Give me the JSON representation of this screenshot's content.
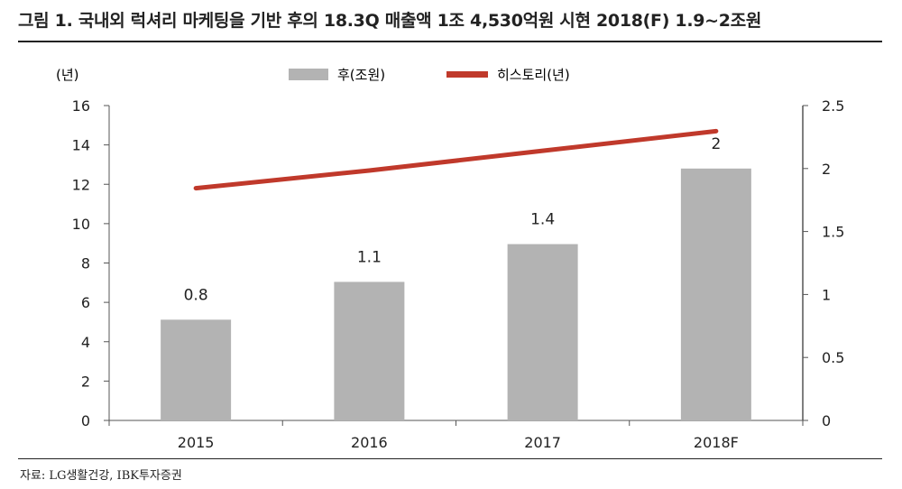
{
  "title": "그림 1. 국내외 럭셔리 마케팅을 기반 후의 18.3Q 매출액 1조 4,530억원 시현 2018(F) 1.9~2조원",
  "source": "자료: LG생활건강, IBK투자증권",
  "colors": {
    "bar": "#b3b3b3",
    "line": "#c0392b",
    "axis": "#555555",
    "text": "#222222"
  },
  "chart_data": {
    "type": "bar",
    "categories": [
      "2015",
      "2016",
      "2017",
      "2018F"
    ],
    "left_axis": {
      "label": "(년)",
      "ylim": [
        0,
        16
      ],
      "ticks": [
        "0",
        "2",
        "4",
        "6",
        "8",
        "10",
        "12",
        "14",
        "16"
      ]
    },
    "right_axis": {
      "label": "",
      "ylim": [
        0,
        2.5
      ],
      "ticks": [
        "0",
        "0.5",
        "1",
        "1.5",
        "2",
        "2.5"
      ]
    },
    "series": [
      {
        "name": "후(조원)",
        "type": "bar",
        "axis": "right",
        "values": [
          0.8,
          1.1,
          1.4,
          2.0
        ],
        "labels": [
          "0.8",
          "1.1",
          "1.4",
          "2"
        ]
      },
      {
        "name": "히스토리(년)",
        "type": "line",
        "axis": "left",
        "values": [
          11.8,
          12.7,
          13.7,
          14.7
        ]
      }
    ],
    "legend": "top-center",
    "grid": false
  }
}
